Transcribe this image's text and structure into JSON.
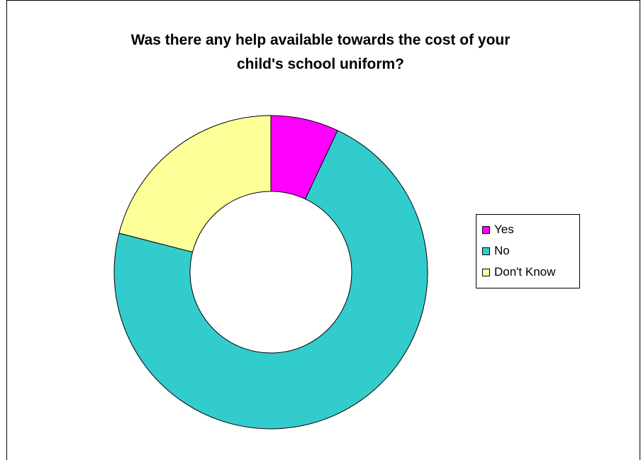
{
  "chart_data": {
    "type": "pie",
    "variant": "doughnut",
    "title": "Was there any help available towards the cost of your\nchild's school uniform?",
    "categories": [
      "Yes",
      "No",
      "Don't Know"
    ],
    "values": [
      7,
      72,
      21
    ],
    "unit": "percent",
    "colors": [
      "#ff00ff",
      "#33cccc",
      "#ffff99"
    ],
    "legend": {
      "position": "right",
      "entries": [
        "Yes",
        "No",
        "Don't Know"
      ]
    },
    "start_angle": "12 o'clock",
    "direction": "clockwise"
  }
}
